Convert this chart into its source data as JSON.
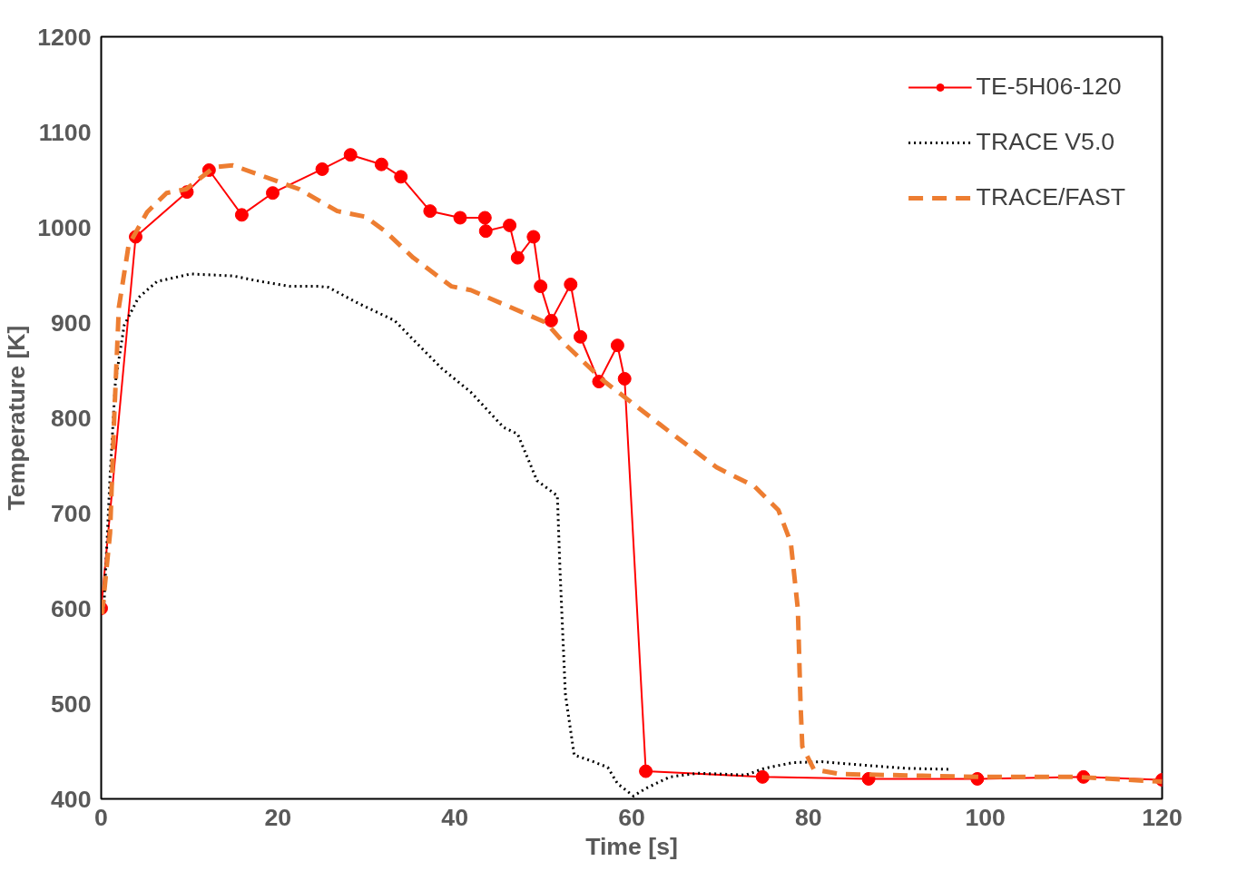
{
  "chart_data": {
    "type": "line",
    "xlabel": "Time [s]",
    "ylabel": "Temperature [K]",
    "xlim": [
      0,
      120
    ],
    "ylim": [
      400,
      1200
    ],
    "xticks": [
      0,
      20,
      40,
      60,
      80,
      100,
      120
    ],
    "yticks": [
      400,
      500,
      600,
      700,
      800,
      900,
      1000,
      1100,
      1200
    ],
    "legend": "top right",
    "series": [
      {
        "name": "TE-5H06-120",
        "color": "#ff0000",
        "marker": "circle",
        "line_style": "solid",
        "x": [
          0,
          3.9,
          9.7,
          12.2,
          15.9,
          19.4,
          25.0,
          28.2,
          31.7,
          33.9,
          37.2,
          40.6,
          43.4,
          43.5,
          46.2,
          47.1,
          48.9,
          49.7,
          50.9,
          53.1,
          54.2,
          56.3,
          58.4,
          59.2,
          61.6,
          74.8,
          86.8,
          99.1,
          111.1,
          120
        ],
        "values": [
          600,
          990,
          1037,
          1060,
          1013,
          1036,
          1061,
          1076,
          1066,
          1053,
          1017,
          1010,
          1010,
          996,
          1002,
          968,
          990,
          938,
          902,
          940,
          885,
          838,
          876,
          841,
          429,
          423,
          421,
          421,
          423,
          420
        ]
      },
      {
        "name": "TRACE V5.0",
        "color": "#000000",
        "marker": "none",
        "line_style": "dotted",
        "x": [
          0.3,
          0.6,
          1,
          1.6,
          2.6,
          4.2,
          6.3,
          10.1,
          14.9,
          18.1,
          21.4,
          24.6,
          25.7,
          28.9,
          33.2,
          35.3,
          38.5,
          41.8,
          45.5,
          47.1,
          49.3,
          50.9,
          51.6,
          51.9,
          52.5,
          53.5,
          55.7,
          57.3,
          58.4,
          60.2,
          61.6,
          64.3,
          67.5,
          72.9,
          75.0,
          78.2,
          81.5,
          86.8,
          91.1,
          96
        ],
        "values": [
          600,
          659,
          738,
          837,
          897,
          926,
          943,
          951,
          949,
          943,
          938,
          938,
          937,
          921,
          902,
          882,
          852,
          827,
          790,
          783,
          734,
          723,
          718,
          639,
          510,
          446,
          439,
          433,
          416,
          403,
          411,
          423,
          427,
          425,
          432,
          438,
          439,
          435,
          432,
          431
        ]
      },
      {
        "name": "TRACE/FAST",
        "color": "#ed7d31",
        "marker": "none",
        "line_style": "dashed",
        "x": [
          0.1,
          1,
          1.5,
          2,
          3.1,
          5.2,
          7.4,
          9.6,
          12.8,
          14.9,
          20.3,
          22.4,
          26.7,
          29.9,
          32.1,
          35.3,
          39.6,
          41.8,
          50.3,
          52.5,
          56.8,
          63.2,
          69.6,
          73.9,
          76.6,
          78.0,
          78.8,
          79.1,
          79.3,
          80.6,
          83.6,
          99.7,
          110.4,
          120
        ],
        "values": [
          594,
          679,
          807,
          916,
          981,
          1016,
          1036,
          1040,
          1063,
          1065,
          1047,
          1040,
          1017,
          1011,
          996,
          968,
          938,
          934,
          900,
          877,
          839,
          793,
          748,
          728,
          703,
          669,
          599,
          500,
          455,
          431,
          426,
          423,
          423,
          418
        ]
      }
    ]
  }
}
